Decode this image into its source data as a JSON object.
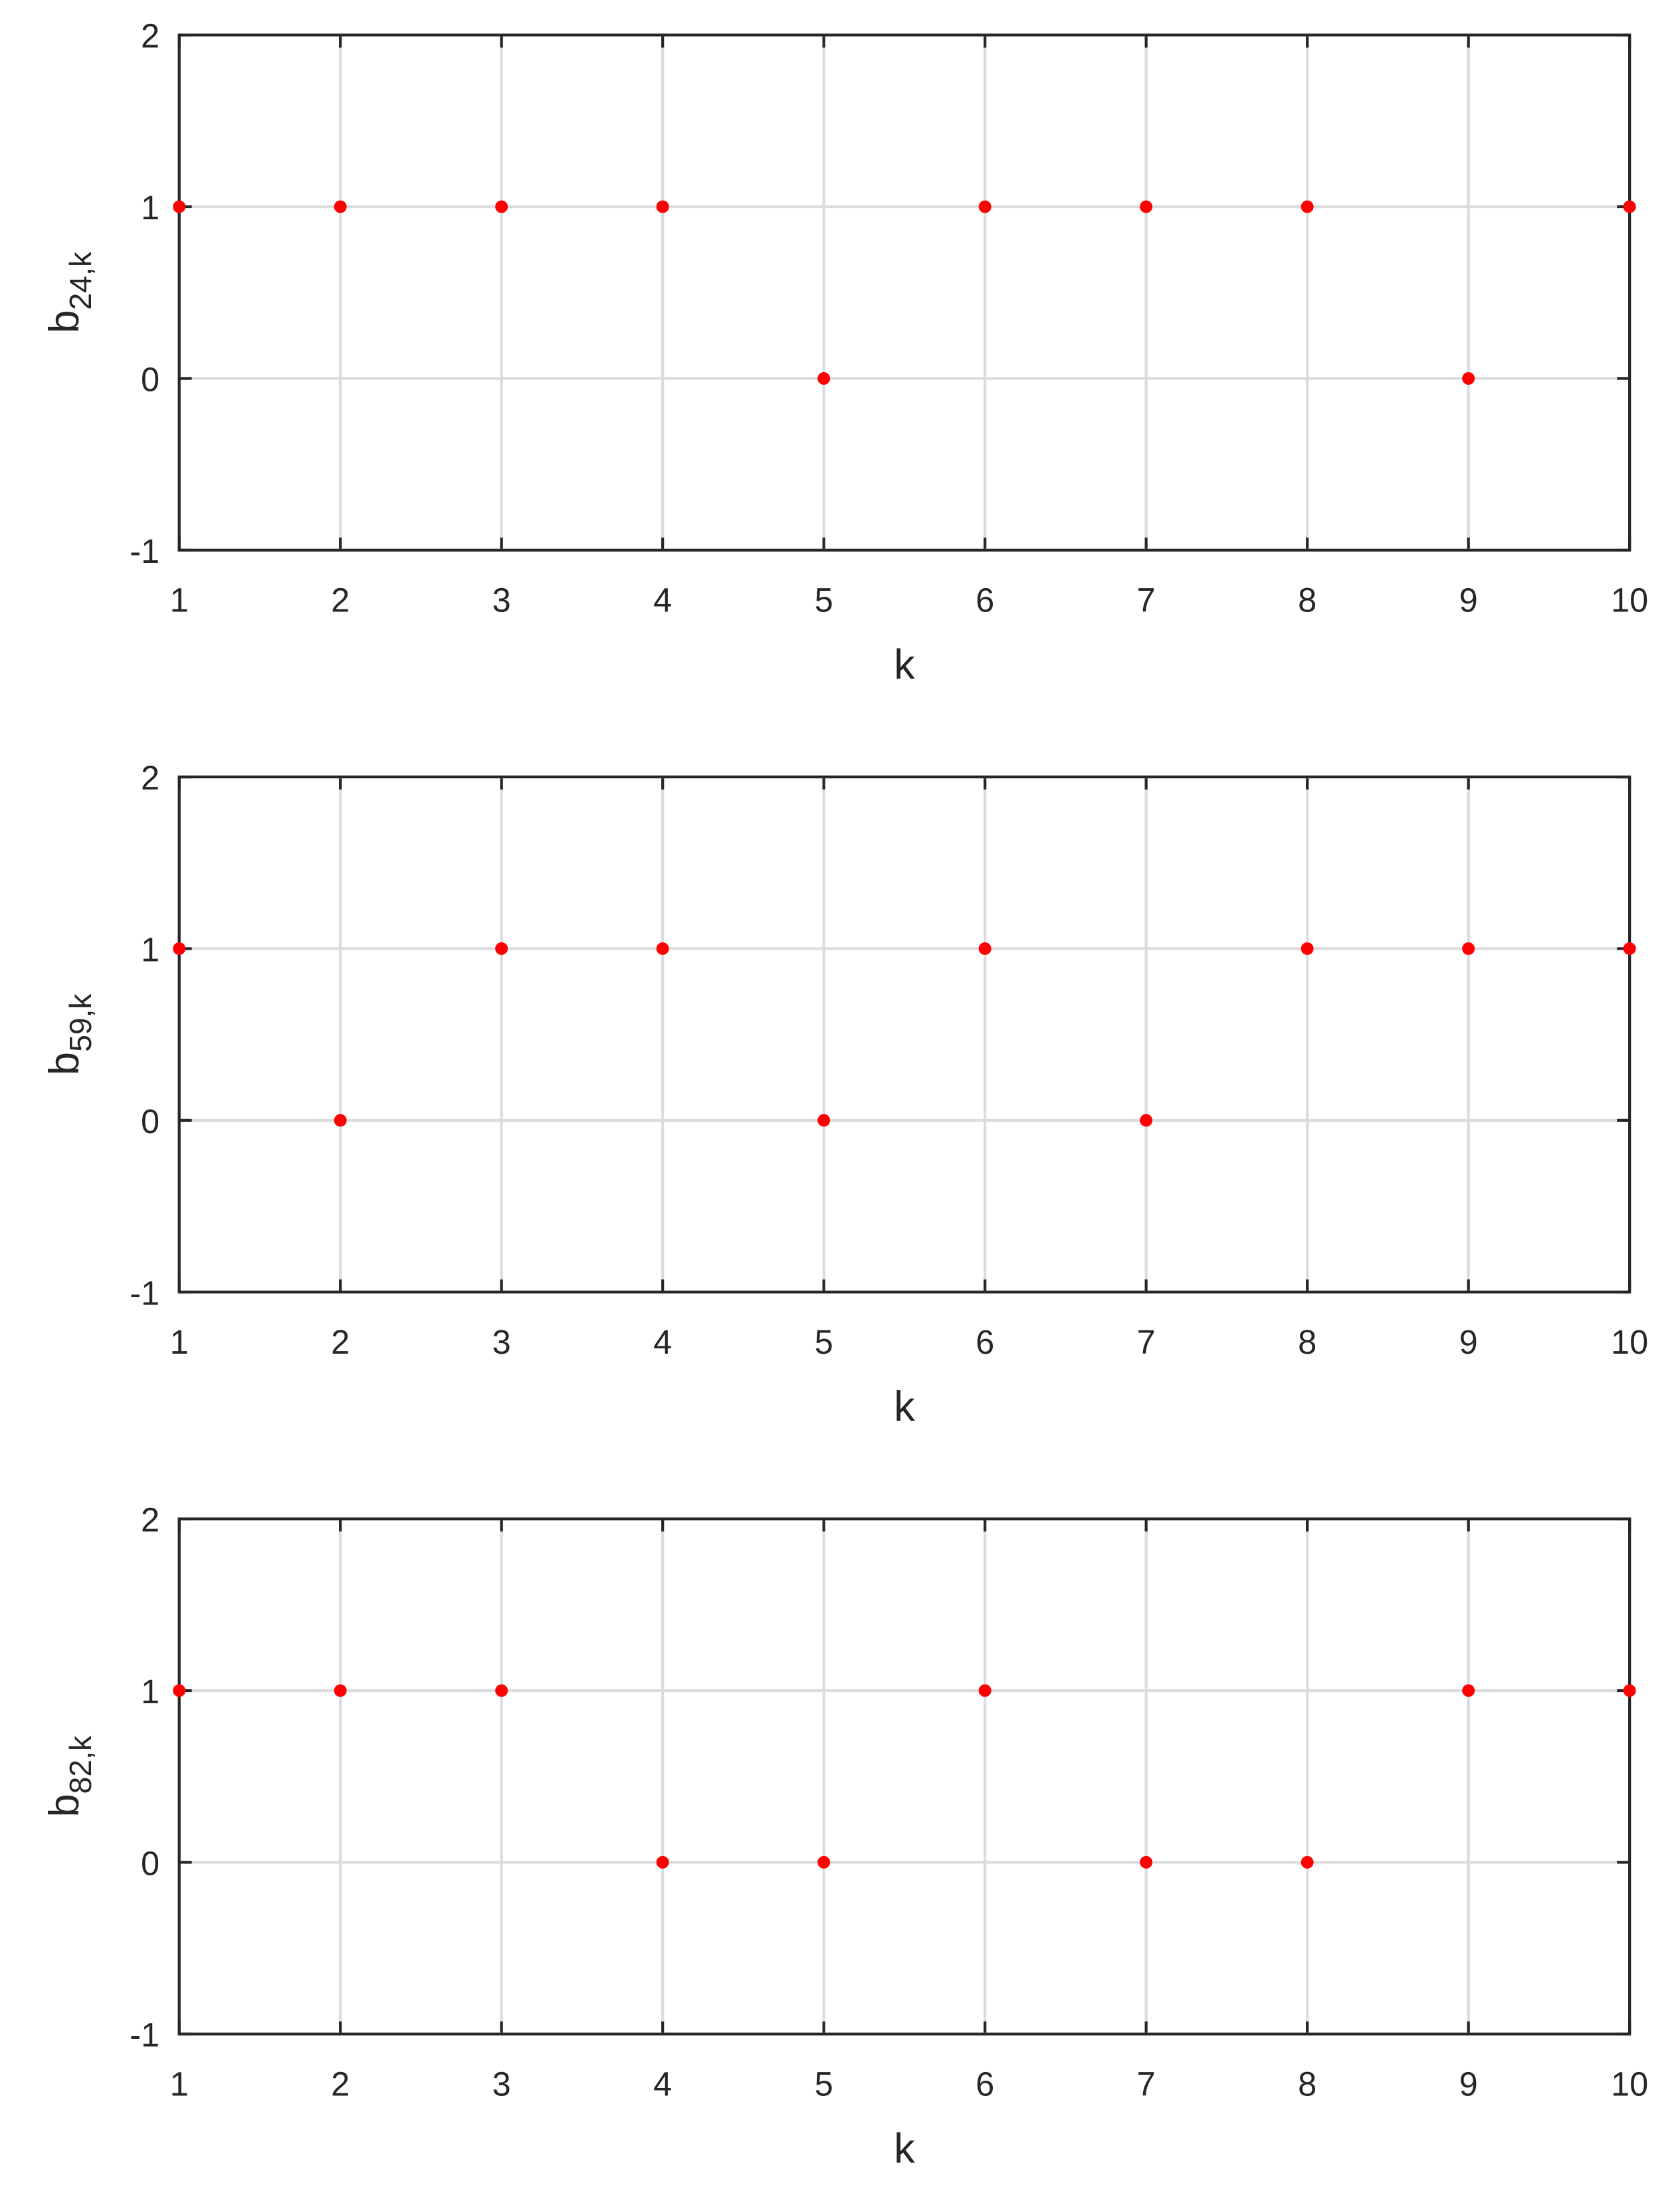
{
  "chart_data": [
    {
      "type": "scatter",
      "ylabel": "b",
      "ylabel_sub": "24,k",
      "xlabel": "k",
      "color": "#ff0000",
      "x": [
        1,
        2,
        3,
        4,
        5,
        6,
        7,
        8,
        9,
        10
      ],
      "values": [
        1,
        1,
        1,
        1,
        0,
        1,
        1,
        1,
        0,
        1
      ],
      "xlim": [
        1,
        10
      ],
      "ylim": [
        -1,
        2
      ],
      "xticks": [
        1,
        2,
        3,
        4,
        5,
        6,
        7,
        8,
        9,
        10
      ],
      "yticks": [
        -1,
        0,
        1,
        2
      ],
      "grid": true
    },
    {
      "type": "scatter",
      "ylabel": "b",
      "ylabel_sub": "59,k",
      "xlabel": "k",
      "color": "#ff0000",
      "x": [
        1,
        2,
        3,
        4,
        5,
        6,
        7,
        8,
        9,
        10
      ],
      "values": [
        1,
        0,
        1,
        1,
        0,
        1,
        0,
        1,
        1,
        1
      ],
      "xlim": [
        1,
        10
      ],
      "ylim": [
        -1,
        2
      ],
      "xticks": [
        1,
        2,
        3,
        4,
        5,
        6,
        7,
        8,
        9,
        10
      ],
      "yticks": [
        -1,
        0,
        1,
        2
      ],
      "grid": true
    },
    {
      "type": "scatter",
      "ylabel": "b",
      "ylabel_sub": "82,k",
      "xlabel": "k",
      "color": "#ff0000",
      "x": [
        1,
        2,
        3,
        4,
        5,
        6,
        7,
        8,
        9,
        10
      ],
      "values": [
        1,
        1,
        1,
        0,
        0,
        1,
        0,
        0,
        1,
        1
      ],
      "xlim": [
        1,
        10
      ],
      "ylim": [
        -1,
        2
      ],
      "xticks": [
        1,
        2,
        3,
        4,
        5,
        6,
        7,
        8,
        9,
        10
      ],
      "yticks": [
        -1,
        0,
        1,
        2
      ],
      "grid": true
    }
  ]
}
